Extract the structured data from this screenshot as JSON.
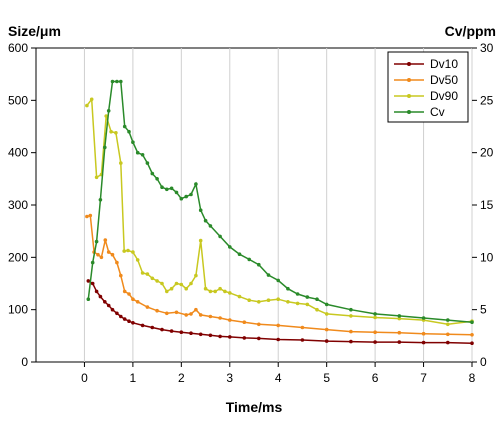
{
  "chart_data": {
    "type": "line",
    "xlabel": "Time/ms",
    "ylabel_left": "Size/μm",
    "ylabel_right": "Cv/ppm",
    "xlim": [
      -1,
      8
    ],
    "ylim_left": [
      0,
      600
    ],
    "ylim_right": [
      0,
      30
    ],
    "x_ticks": [
      "0",
      "1",
      "2",
      "3",
      "4",
      "5",
      "6",
      "7",
      "8"
    ],
    "y_ticks_left": [
      "0",
      "100",
      "200",
      "300",
      "400",
      "500",
      "600"
    ],
    "y_ticks_right": [
      "0",
      "5",
      "10",
      "15",
      "20",
      "25",
      "30"
    ],
    "grid": "vertical",
    "legend_position": "top-right",
    "colors": {
      "Dv10": "#800000",
      "Dv50": "#f08a1c",
      "Dv90": "#c8c820",
      "Cv": "#2a8a2a"
    },
    "series": [
      {
        "name": "Dv10",
        "axis": "left",
        "x": [
          0.08,
          0.17,
          0.25,
          0.33,
          0.42,
          0.5,
          0.58,
          0.67,
          0.75,
          0.83,
          0.92,
          1.0,
          1.2,
          1.4,
          1.6,
          1.8,
          2.0,
          2.2,
          2.4,
          2.6,
          2.8,
          3.0,
          3.3,
          3.6,
          4.0,
          4.5,
          5.0,
          5.5,
          6.0,
          6.5,
          7.0,
          7.5,
          8.0
        ],
        "values": [
          155,
          150,
          135,
          125,
          115,
          108,
          100,
          93,
          87,
          82,
          78,
          75,
          70,
          66,
          62,
          59,
          57,
          55,
          53,
          51,
          49,
          48,
          46,
          45,
          43,
          42,
          40,
          39,
          38,
          38,
          37,
          37,
          36
        ]
      },
      {
        "name": "Dv50",
        "axis": "left",
        "x": [
          0.05,
          0.12,
          0.2,
          0.28,
          0.35,
          0.43,
          0.5,
          0.58,
          0.67,
          0.75,
          0.83,
          0.92,
          1.0,
          1.1,
          1.3,
          1.5,
          1.7,
          1.9,
          2.1,
          2.2,
          2.3,
          2.4,
          2.6,
          2.8,
          3.0,
          3.3,
          3.6,
          4.0,
          4.5,
          5.0,
          5.5,
          6.0,
          6.5,
          7.0,
          7.5,
          8.0
        ],
        "values": [
          278,
          280,
          210,
          205,
          200,
          233,
          210,
          205,
          190,
          165,
          135,
          130,
          120,
          115,
          105,
          98,
          93,
          95,
          90,
          92,
          100,
          90,
          87,
          84,
          80,
          76,
          72,
          70,
          66,
          62,
          58,
          57,
          56,
          54,
          53,
          52
        ]
      },
      {
        "name": "Dv90",
        "axis": "left",
        "x": [
          0.05,
          0.15,
          0.25,
          0.35,
          0.45,
          0.55,
          0.65,
          0.75,
          0.82,
          0.9,
          1.0,
          1.1,
          1.2,
          1.3,
          1.4,
          1.5,
          1.6,
          1.7,
          1.8,
          1.9,
          2.0,
          2.1,
          2.2,
          2.3,
          2.4,
          2.5,
          2.6,
          2.7,
          2.8,
          2.9,
          3.0,
          3.2,
          3.4,
          3.6,
          3.8,
          4.0,
          4.2,
          4.4,
          4.6,
          4.8,
          5.0,
          5.5,
          6.0,
          6.5,
          7.0,
          7.5,
          8.0
        ],
        "values": [
          490,
          502,
          353,
          358,
          470,
          440,
          438,
          380,
          212,
          213,
          210,
          195,
          170,
          168,
          160,
          155,
          150,
          135,
          140,
          150,
          148,
          140,
          150,
          165,
          232,
          140,
          135,
          135,
          140,
          135,
          132,
          125,
          118,
          115,
          118,
          120,
          115,
          112,
          110,
          100,
          92,
          88,
          85,
          83,
          80,
          72,
          78
        ]
      },
      {
        "name": "Cv",
        "axis": "right",
        "x": [
          0.08,
          0.17,
          0.25,
          0.33,
          0.42,
          0.5,
          0.58,
          0.67,
          0.75,
          0.83,
          0.92,
          1.0,
          1.1,
          1.2,
          1.3,
          1.4,
          1.5,
          1.6,
          1.7,
          1.8,
          1.9,
          2.0,
          2.1,
          2.2,
          2.3,
          2.4,
          2.5,
          2.6,
          2.8,
          3.0,
          3.2,
          3.4,
          3.6,
          3.8,
          4.0,
          4.2,
          4.4,
          4.6,
          4.8,
          5.0,
          5.5,
          6.0,
          6.5,
          7.0,
          7.5,
          8.0
        ],
        "values": [
          6.0,
          9.5,
          11.5,
          15.5,
          20.5,
          24,
          26.8,
          26.8,
          26.8,
          22.5,
          22,
          21,
          20,
          19.8,
          19,
          18,
          17.5,
          16.7,
          16.5,
          16.6,
          16.2,
          15.6,
          15.8,
          16,
          17,
          14.5,
          13.5,
          13,
          12,
          11,
          10.3,
          9.8,
          9.3,
          8.3,
          7.8,
          7.0,
          6.5,
          6.2,
          6.0,
          5.5,
          5.0,
          4.6,
          4.4,
          4.2,
          4.0,
          3.8
        ]
      }
    ]
  }
}
